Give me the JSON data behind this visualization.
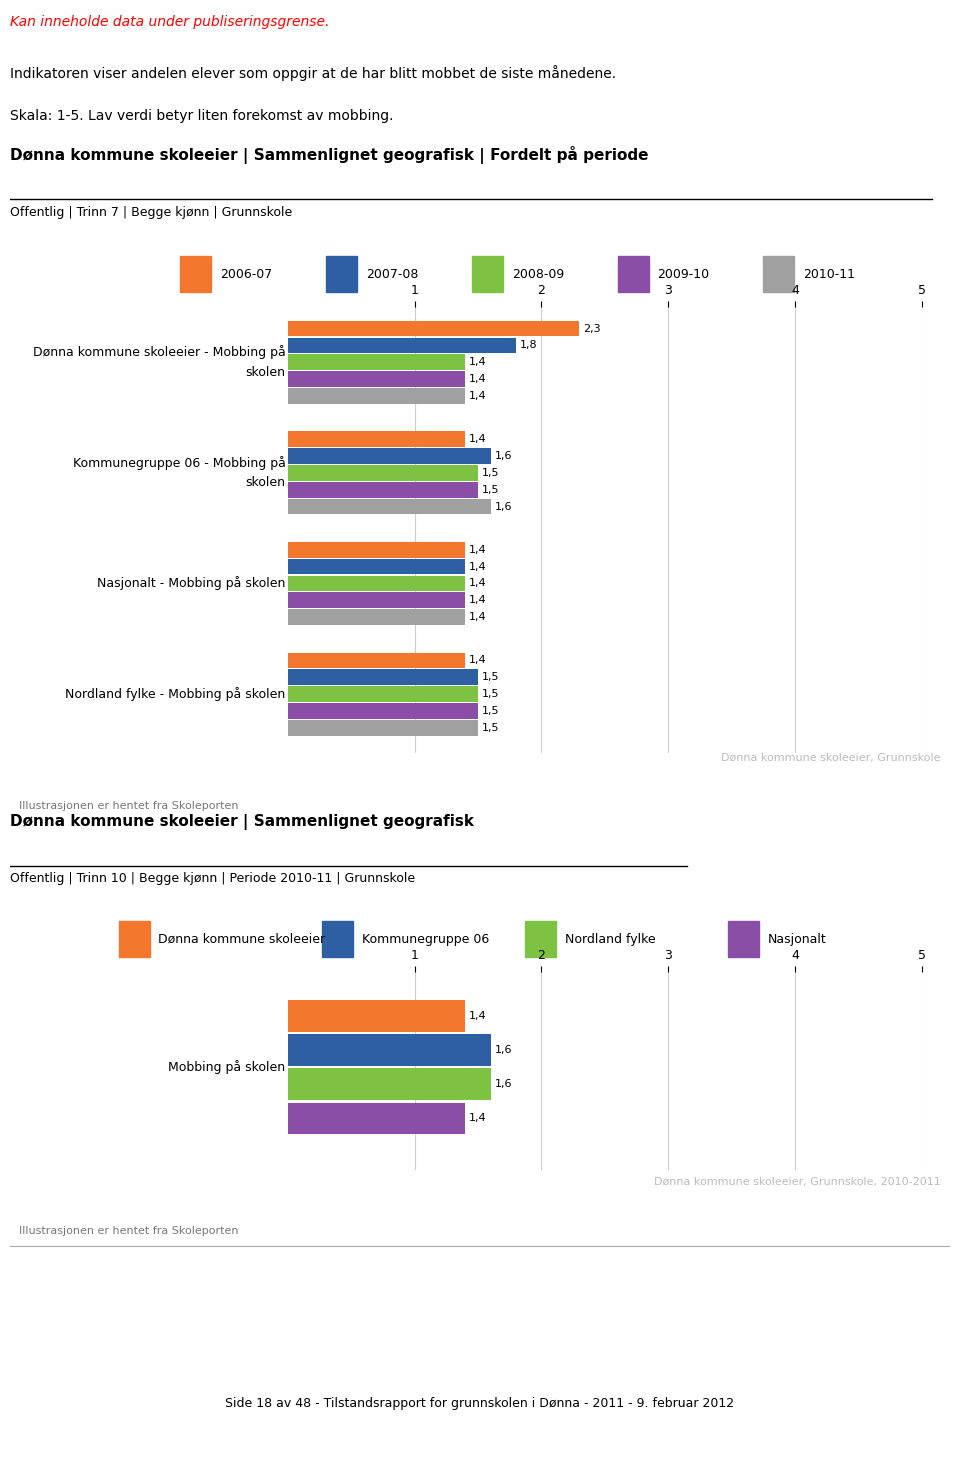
{
  "page_warning": "Kan inneholde data under publiseringsgrense.",
  "intro_text1": "Indikatoren viser andelen elever som oppgir at de har blitt mobbet de siste månedene.",
  "intro_text2": "Skala: 1-5. Lav verdi betyr liten forekomst av mobbing.",
  "chart1_title": "Dønna kommune skoleeier | Sammenlignet geografisk | Fordelt på periode",
  "chart1_subtitle": "Offentlig | Trinn 7 | Begge kjønn | Grunnskole",
  "chart1_legend_labels": [
    "2006-07",
    "2007-08",
    "2008-09",
    "2009-10",
    "2010-11"
  ],
  "chart1_legend_colors": [
    "#f4772e",
    "#2e5fa3",
    "#7dc242",
    "#8b4ea6",
    "#a0a0a0"
  ],
  "chart1_groups": [
    {
      "label": "Dønna kommune skoleeier - Mobbing på\nskolen",
      "values": [
        2.3,
        1.8,
        1.4,
        1.4,
        1.4
      ]
    },
    {
      "label": "Kommunegruppe 06 - Mobbing på\nskolen",
      "values": [
        1.4,
        1.6,
        1.5,
        1.5,
        1.6
      ]
    },
    {
      "label": "Nasjonalt - Mobbing på skolen",
      "values": [
        1.4,
        1.4,
        1.4,
        1.4,
        1.4
      ]
    },
    {
      "label": "Nordland fylke - Mobbing på skolen",
      "values": [
        1.4,
        1.5,
        1.5,
        1.5,
        1.5
      ]
    }
  ],
  "chart1_xlim": [
    0,
    5
  ],
  "chart1_xticks": [
    1,
    2,
    3,
    4,
    5
  ],
  "chart1_watermark": "Dønna kommune skoleeier, Grunnskole",
  "chart1_footer": "Illustrasjonen er hentet fra Skoleporten",
  "chart2_title": "Dønna kommune skoleeier | Sammenlignet geografisk",
  "chart2_subtitle": "Offentlig | Trinn 10 | Begge kjønn | Periode 2010-11 | Grunnskole",
  "chart2_legend_labels": [
    "Dønna kommune skoleeier",
    "Kommunegruppe 06",
    "Nordland fylke",
    "Nasjonalt"
  ],
  "chart2_legend_colors": [
    "#f4772e",
    "#2e5fa3",
    "#7dc242",
    "#8b4ea6"
  ],
  "chart2_groups": [
    {
      "label": "Mobbing på skolen",
      "values": [
        1.4,
        1.6,
        1.6,
        1.4
      ]
    }
  ],
  "chart2_xlim": [
    0,
    5
  ],
  "chart2_xticks": [
    1,
    2,
    3,
    4,
    5
  ],
  "chart2_watermark": "Dønna kommune skoleeier, Grunnskole, 2010-2011",
  "chart2_footer": "Illustrasjonen er hentet fra Skoleporten",
  "page_footer": "Side 18 av 48 - Tilstandsrapport for grunnskolen i Dønna - 2011 - 9. februar 2012",
  "bar_height": 0.13,
  "bar_gap": 0.01
}
